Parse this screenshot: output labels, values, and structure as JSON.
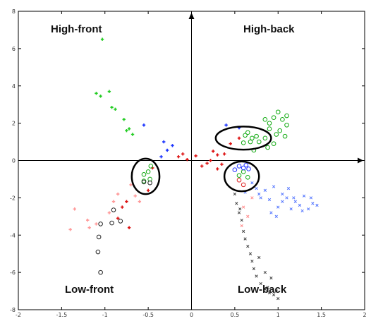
{
  "chart_data": {
    "type": "scatter",
    "xlim": [
      -2,
      2
    ],
    "ylim": [
      -8,
      8
    ],
    "x_ticks": [
      -2,
      -1.5,
      -1,
      -0.5,
      0,
      0.5,
      1,
      1.5,
      2
    ],
    "y_ticks": [
      -8,
      -6,
      -4,
      -2,
      0,
      2,
      4,
      6,
      8
    ],
    "x_tick_labels": [
      "-2",
      "-1.5",
      "-1",
      "-0.5",
      "0",
      "0.5",
      "1",
      "1.5",
      "2"
    ],
    "y_tick_labels": [
      "-8",
      "-6",
      "-4",
      "-2",
      "0",
      "2",
      "4",
      "6",
      "8"
    ],
    "grid": false,
    "annotations": {
      "high_front": "High-front",
      "high_back": "High-back",
      "low_front": "Low-front",
      "low_back": "Low-back"
    },
    "ellipses": [
      {
        "cx": -0.53,
        "cy": -0.85,
        "rx": 0.16,
        "ry": 0.95
      },
      {
        "cx": 0.6,
        "cy": 1.2,
        "rx": 0.32,
        "ry": 0.62
      },
      {
        "cx": 0.58,
        "cy": -0.85,
        "rx": 0.2,
        "ry": 0.8
      }
    ],
    "series": [
      {
        "marker": "plus",
        "color": "#22cc22",
        "points": [
          [
            -1.03,
            6.5
          ],
          [
            -1.1,
            3.6
          ],
          [
            -1.05,
            3.45
          ],
          [
            -0.95,
            3.7
          ],
          [
            -0.92,
            2.85
          ],
          [
            -0.88,
            2.75
          ],
          [
            -0.78,
            2.2
          ],
          [
            -0.75,
            1.6
          ],
          [
            -0.68,
            1.4
          ],
          [
            -0.72,
            1.7
          ]
        ]
      },
      {
        "marker": "plus",
        "color": "#1a33ff",
        "points": [
          [
            -0.55,
            1.9
          ],
          [
            -0.32,
            1.0
          ],
          [
            -0.28,
            0.55
          ],
          [
            -0.22,
            0.8
          ],
          [
            0.4,
            1.9
          ],
          [
            0.55,
            1.75
          ],
          [
            -0.35,
            0.2
          ]
        ]
      },
      {
        "marker": "plus",
        "color": "#dd1111",
        "points": [
          [
            -0.15,
            0.2
          ],
          [
            -0.1,
            0.35
          ],
          [
            0.05,
            0.25
          ],
          [
            0.12,
            -0.3
          ],
          [
            0.18,
            -0.15
          ],
          [
            0.25,
            0.5
          ],
          [
            0.3,
            0.3
          ],
          [
            0.3,
            -0.45
          ],
          [
            0.38,
            0.35
          ],
          [
            0.45,
            0.9
          ],
          [
            0.55,
            1.2
          ],
          [
            0.22,
            0.0
          ],
          [
            -0.05,
            0.05
          ],
          [
            0.35,
            -0.2
          ],
          [
            -0.75,
            -2.2
          ],
          [
            -0.8,
            -2.5
          ],
          [
            -0.85,
            -3.1
          ],
          [
            -0.72,
            -3.6
          ],
          [
            -0.5,
            -1.6
          ],
          [
            -0.45,
            -0.4
          ]
        ]
      },
      {
        "marker": "plus",
        "color": "#ff9999",
        "points": [
          [
            -1.35,
            -2.6
          ],
          [
            -1.4,
            -3.7
          ],
          [
            -1.18,
            -3.6
          ],
          [
            -1.1,
            -3.4
          ],
          [
            -1.2,
            -3.2
          ],
          [
            -0.95,
            -2.8
          ],
          [
            -0.9,
            -2.2
          ],
          [
            -0.85,
            -1.8
          ],
          [
            -0.65,
            -1.9
          ],
          [
            -0.6,
            -2.2
          ],
          [
            -0.7,
            -1.3
          ]
        ]
      },
      {
        "marker": "circle",
        "color": "#11aa11",
        "points": [
          [
            -0.55,
            -0.75
          ],
          [
            -0.5,
            -0.6
          ],
          [
            -0.48,
            -1.0
          ],
          [
            -0.55,
            -1.1
          ],
          [
            -0.47,
            -0.3
          ],
          [
            0.55,
            -0.8
          ],
          [
            0.6,
            -0.6
          ],
          [
            0.65,
            -0.9
          ],
          [
            0.7,
            1.2
          ],
          [
            0.65,
            1.5
          ],
          [
            0.75,
            1.3
          ],
          [
            0.68,
            1.0
          ],
          [
            0.72,
            0.55
          ],
          [
            0.85,
            2.2
          ],
          [
            0.9,
            1.7
          ],
          [
            0.95,
            2.3
          ],
          [
            1.0,
            2.6
          ],
          [
            1.05,
            2.2
          ],
          [
            1.1,
            2.4
          ],
          [
            1.02,
            1.6
          ],
          [
            1.1,
            1.9
          ],
          [
            0.9,
            2.0
          ],
          [
            0.98,
            1.4
          ],
          [
            0.85,
            1.2
          ],
          [
            0.95,
            0.9
          ],
          [
            0.88,
            0.7
          ],
          [
            0.62,
            1.35
          ],
          [
            0.78,
            1.0
          ],
          [
            0.6,
            0.95
          ],
          [
            1.08,
            1.3
          ]
        ]
      },
      {
        "marker": "circle",
        "color": "#2233ff",
        "points": [
          [
            0.55,
            -0.3
          ],
          [
            0.6,
            -0.4
          ],
          [
            0.63,
            -0.25
          ],
          [
            0.5,
            -0.5
          ],
          [
            0.66,
            -0.45
          ]
        ]
      },
      {
        "marker": "circle",
        "color": "#dd2222",
        "points": [
          [
            0.6,
            -1.3
          ],
          [
            0.55,
            -1.05
          ]
        ]
      },
      {
        "marker": "circle",
        "color": "#222222",
        "points": [
          [
            -1.05,
            -6.0
          ],
          [
            -1.08,
            -4.9
          ],
          [
            -1.07,
            -4.1
          ],
          [
            -1.05,
            -3.4
          ],
          [
            -0.92,
            -3.35
          ],
          [
            -0.9,
            -2.65
          ],
          [
            -0.82,
            -3.25
          ],
          [
            -0.55,
            -1.15
          ],
          [
            -0.48,
            -1.2
          ]
        ]
      },
      {
        "marker": "x",
        "color": "#5577ff",
        "points": [
          [
            0.7,
            -1.2
          ],
          [
            0.75,
            -1.5
          ],
          [
            0.8,
            -2.0
          ],
          [
            0.85,
            -1.6
          ],
          [
            0.9,
            -2.1
          ],
          [
            0.95,
            -1.4
          ],
          [
            1.0,
            -2.5
          ],
          [
            1.05,
            -1.8
          ],
          [
            1.1,
            -2.0
          ],
          [
            1.15,
            -2.6
          ],
          [
            1.2,
            -2.2
          ],
          [
            1.25,
            -2.4
          ],
          [
            1.3,
            -1.9
          ],
          [
            1.35,
            -2.6
          ],
          [
            1.4,
            -2.3
          ],
          [
            1.45,
            -2.4
          ],
          [
            0.92,
            -2.8
          ],
          [
            1.12,
            -1.5
          ],
          [
            0.98,
            -3.0
          ],
          [
            1.28,
            -2.7
          ],
          [
            1.38,
            -2.0
          ],
          [
            0.62,
            -1.7
          ],
          [
            0.78,
            -1.8
          ],
          [
            1.05,
            -2.2
          ],
          [
            1.18,
            -2.0
          ]
        ]
      },
      {
        "marker": "x",
        "color": "#444444",
        "points": [
          [
            0.5,
            -1.8
          ],
          [
            0.52,
            -2.3
          ],
          [
            0.55,
            -2.8
          ],
          [
            0.58,
            -3.2
          ],
          [
            0.6,
            -3.8
          ],
          [
            0.65,
            -4.6
          ],
          [
            0.68,
            -5.0
          ],
          [
            0.7,
            -5.4
          ],
          [
            0.72,
            -5.8
          ],
          [
            0.75,
            -6.2
          ],
          [
            0.8,
            -6.6
          ],
          [
            0.85,
            -6.9
          ],
          [
            0.9,
            -7.1
          ],
          [
            0.95,
            -7.2
          ],
          [
            1.0,
            -7.4
          ],
          [
            0.85,
            -6.0
          ],
          [
            0.92,
            -6.3
          ],
          [
            0.78,
            -5.2
          ],
          [
            0.62,
            -4.2
          ],
          [
            0.56,
            -2.6
          ],
          [
            0.88,
            -6.8
          ],
          [
            0.98,
            -7.0
          ]
        ]
      },
      {
        "marker": "x",
        "color": "#ff8888",
        "points": [
          [
            0.6,
            -2.5
          ],
          [
            0.65,
            -3.0
          ],
          [
            0.7,
            -2.0
          ],
          [
            0.58,
            -3.5
          ]
        ]
      }
    ]
  }
}
